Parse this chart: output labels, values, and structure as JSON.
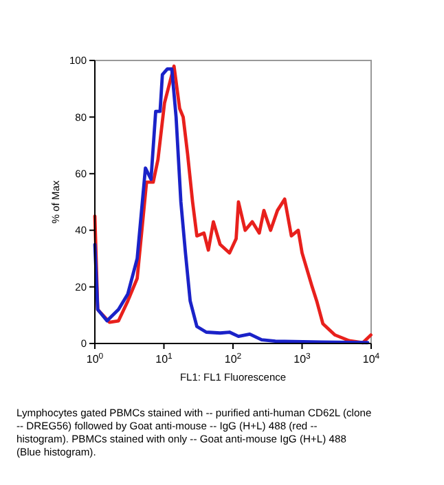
{
  "chart_data": {
    "type": "line",
    "xlabel": "FL1: FL1 Fluorescence",
    "ylabel": "% of Max",
    "log": "x",
    "xlim": [
      1,
      10000
    ],
    "xticks": [
      {
        "value": 1,
        "label": "10$^{0}$"
      },
      {
        "value": 10,
        "label": "10$^{1}$"
      },
      {
        "value": 100,
        "label": "10$^{2}$"
      },
      {
        "value": 1000,
        "label": "10$^{3}$"
      },
      {
        "value": 10000,
        "label": "10$^{4}$"
      }
    ],
    "ylim": [
      0,
      100
    ],
    "yticks": [
      0,
      20,
      40,
      60,
      80,
      100
    ],
    "grid": false,
    "marker": "none",
    "line_style": "solid",
    "series": [
      {
        "color": "#e8201c",
        "x": [
          1,
          1.1,
          1.63,
          2.2,
          3,
          4.1,
          5.6,
          7,
          8.2,
          10.2,
          14,
          16.9,
          19,
          22,
          26,
          30,
          38,
          44,
          52,
          65,
          89,
          111,
          120,
          150,
          190,
          240,
          280,
          350,
          440,
          560,
          700,
          880,
          1000,
          1400,
          1630,
          2000,
          3000,
          4800,
          7600,
          9900
        ],
        "values": [
          45,
          12,
          7.5,
          8,
          15,
          23,
          57,
          57,
          65,
          85,
          98,
          83,
          80,
          67,
          50,
          38,
          39,
          33,
          43,
          35,
          32,
          37,
          50,
          40,
          43,
          39,
          47,
          40,
          47,
          51,
          38,
          40,
          32,
          20,
          15,
          7,
          3,
          1,
          0.3,
          3
        ]
      },
      {
        "color": "#1a22c8",
        "x": [
          1,
          1.1,
          1.5,
          2.2,
          3,
          4.1,
          5.4,
          6.5,
          7.6,
          8.8,
          9.5,
          11.2,
          13,
          15,
          17.6,
          20.5,
          24,
          30,
          41,
          65,
          89,
          120,
          175,
          260,
          410,
          1900,
          8900
        ],
        "values": [
          35,
          12,
          8,
          12,
          17.5,
          30,
          62,
          58,
          82,
          82,
          95,
          97,
          97,
          80,
          50,
          32,
          15,
          6,
          4,
          3.7,
          4,
          2.5,
          3.3,
          1.3,
          0.8,
          0.5,
          0.3
        ]
      }
    ],
    "annotations": [
      "Lymphocytes gated PBMCs stained with -- purified anti-human CD62L (clone -- DREG56) followed by Goat anti-mouse -- IgG (H+L) 488 (red -- histogram). PBMCs stained with only -- Goat anti-mouse IgG (H+L) 488 (Blue histogram)."
    ]
  }
}
